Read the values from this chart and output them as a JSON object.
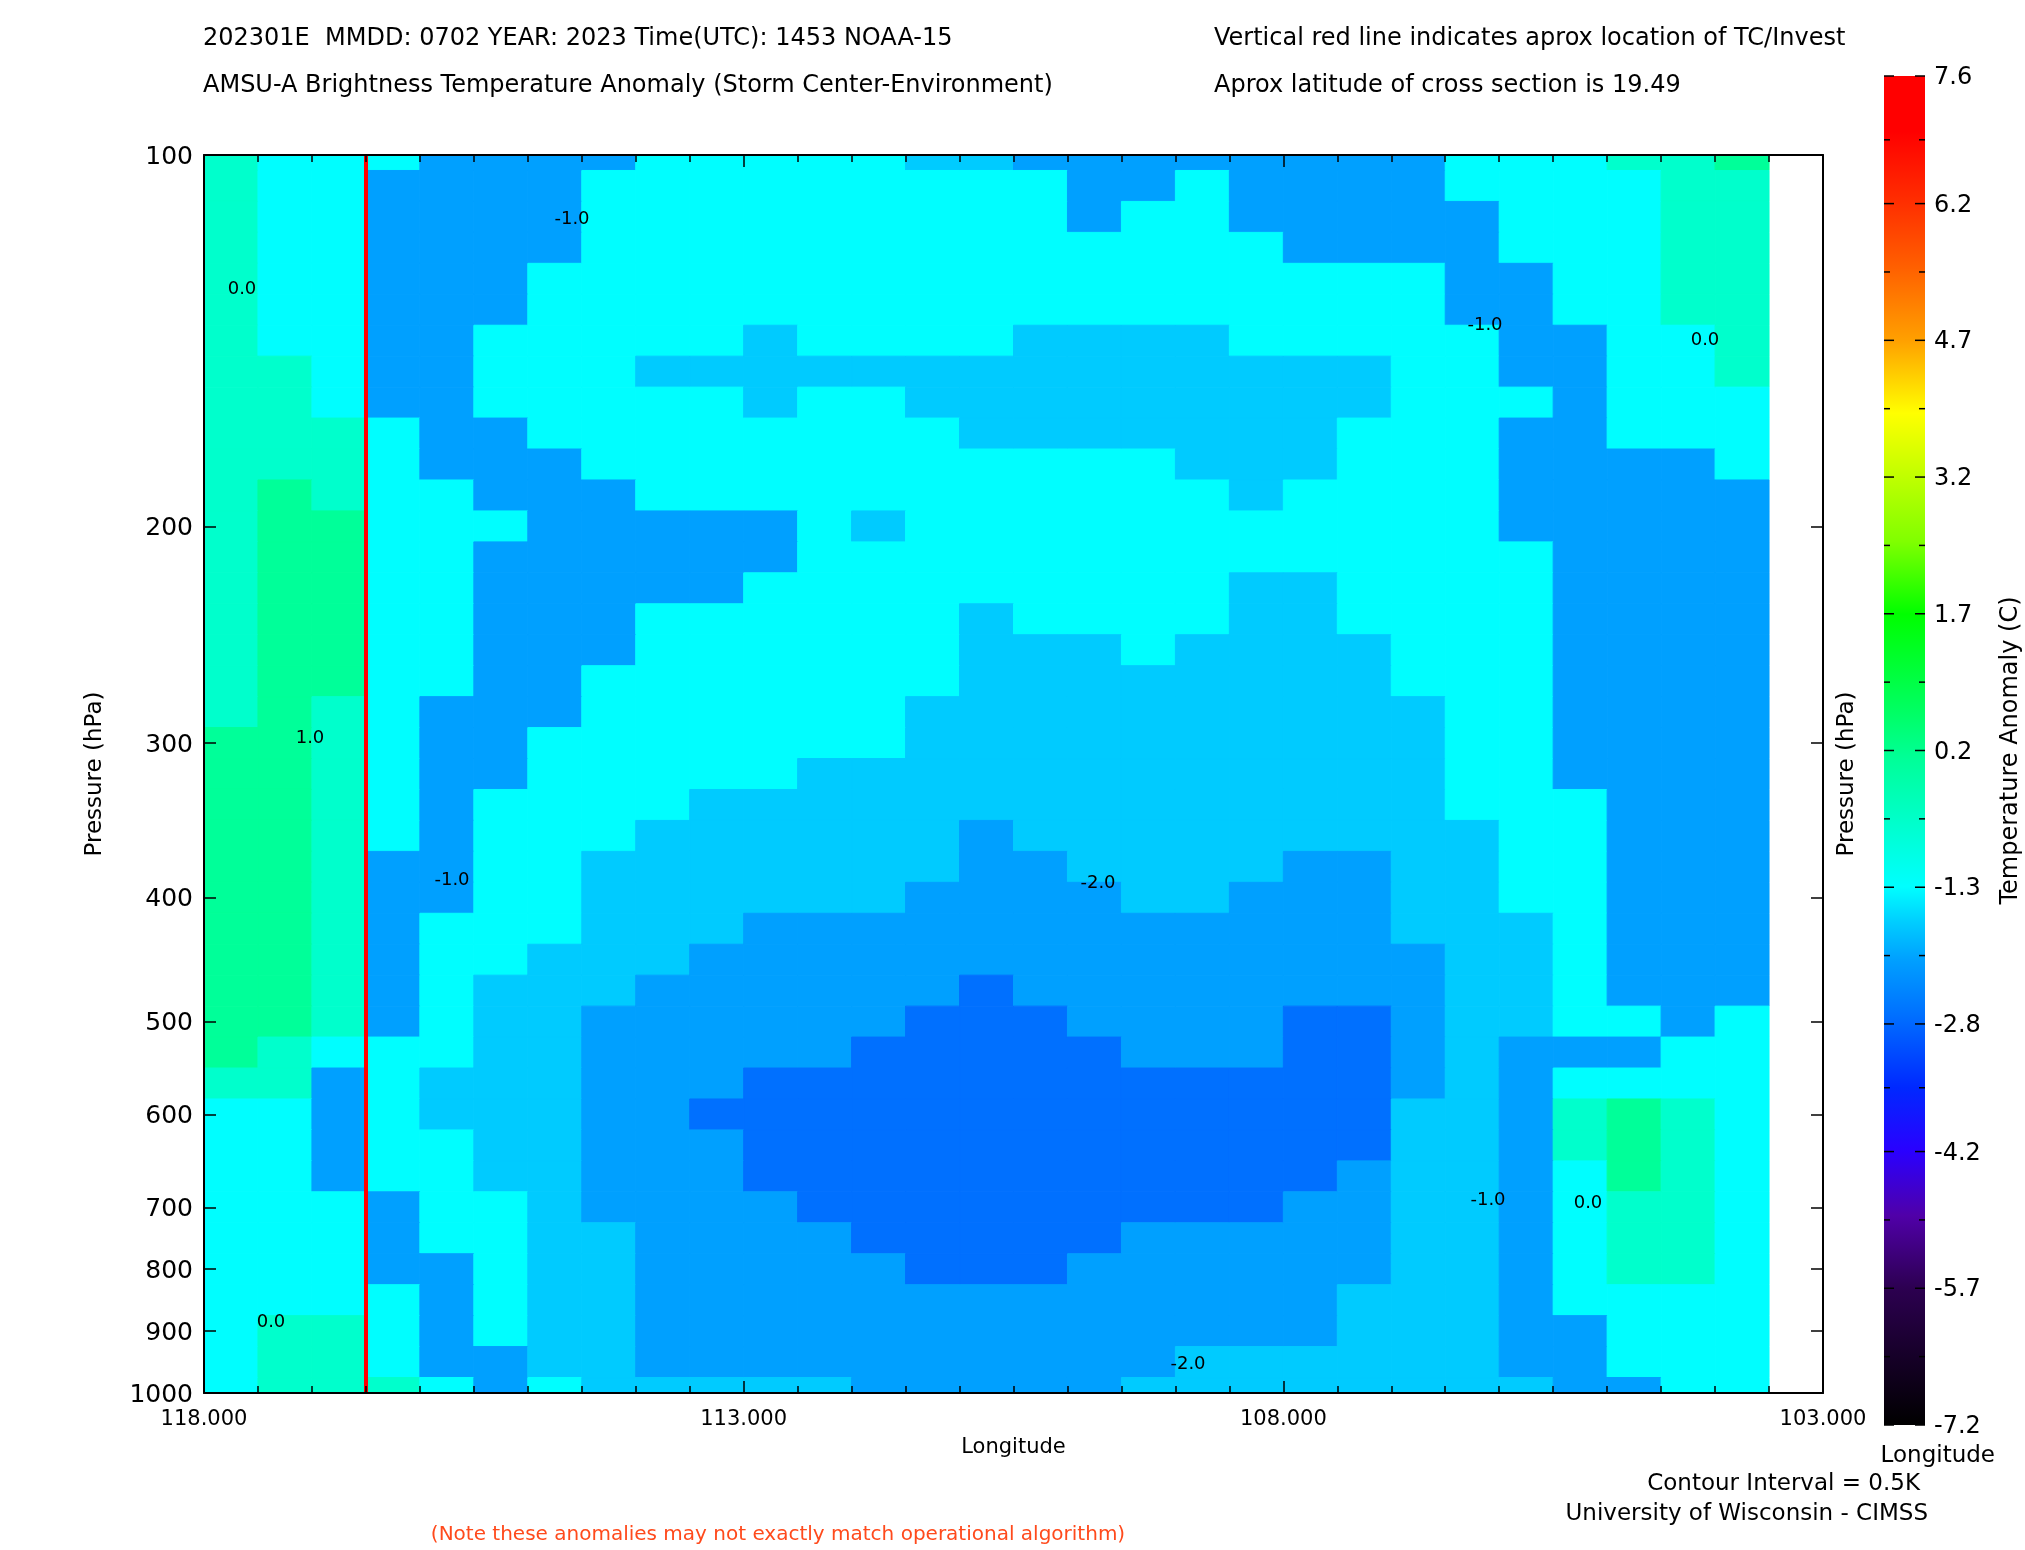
{
  "chart_data": {
    "type": "heatmap",
    "title": "202301E  MMDD: 0702 YEAR: 2023 Time(UTC): 1453 NOAA-15",
    "subtitle": "AMSU-A Brightness Temperature Anomaly (Storm Center-Environment)",
    "xlabel": "Longitude",
    "ylabel": "Pressure (hPa)",
    "y2label": "Pressure (hPa)",
    "clabel": "Temperature Anomaly (C)",
    "annotations": [
      "Vertical red line indicates aprox location of TC/Invest",
      "Aprox latitude of cross section is 19.49",
      "0.0",
      "-1.0",
      "1.0",
      "-1.0",
      "-2.0",
      "-1.0",
      "0.0",
      "-1.0",
      "0.0",
      "0.0",
      "-2.0",
      "Contour Interval = 0.5K",
      "Longitude",
      "University of Wisconsin - CIMSS",
      "(Note these anomalies may not exactly match operational algorithm)"
    ],
    "x": [
      117.75,
      117.25,
      116.75,
      116.25,
      115.75,
      115.25,
      114.75,
      114.25,
      113.75,
      113.25,
      112.75,
      112.25,
      111.75,
      111.25,
      110.75,
      110.25,
      109.75,
      109.25,
      108.75,
      108.25,
      107.75,
      107.25,
      106.75,
      106.25,
      105.75,
      105.25,
      104.75,
      104.25,
      103.75
    ],
    "y_categories": [
      "100",
      null,
      null,
      null,
      null,
      null,
      null,
      null,
      null,
      null,
      null,
      null,
      "200",
      null,
      null,
      null,
      null,
      null,
      null,
      "300",
      null,
      null,
      null,
      null,
      "400",
      null,
      null,
      null,
      "500",
      null,
      null,
      "600",
      null,
      null,
      "700",
      null,
      "800",
      null,
      "900",
      null,
      "1000"
    ],
    "cells": [
      [
        -0.6,
        -1.3,
        -1.3,
        -1.3,
        -2.1,
        -2.1,
        -2.1,
        -2.1,
        -1.3,
        -1.3,
        -1.3,
        -1.3,
        -1.3,
        -1.7,
        -1.7,
        -2.1,
        -2.1,
        -2.1,
        -2.1,
        -2.1,
        -2.1,
        -2.1,
        -2.1,
        -1.3,
        -1.3,
        -1.3,
        -0.6,
        -0.6,
        0.1
      ],
      [
        -0.6,
        -1.3,
        -1.3,
        -2.1,
        -2.1,
        -2.1,
        -2.1,
        -1.3,
        -1.3,
        -1.3,
        -1.3,
        -1.3,
        -1.3,
        -1.3,
        -1.3,
        -1.3,
        -2.1,
        -2.1,
        -1.3,
        -2.1,
        -2.1,
        -2.1,
        -2.1,
        -1.3,
        -1.3,
        -1.3,
        -1.3,
        -0.6,
        -0.6
      ],
      [
        -0.6,
        -1.3,
        -1.3,
        -2.1,
        -2.1,
        -2.1,
        -2.1,
        -1.3,
        -1.3,
        -1.3,
        -1.3,
        -1.3,
        -1.3,
        -1.3,
        -1.3,
        -1.3,
        -2.1,
        -1.3,
        -1.3,
        -2.1,
        -2.1,
        -2.1,
        -2.1,
        -2.1,
        -1.3,
        -1.3,
        -1.3,
        -0.6,
        -0.6
      ],
      [
        -0.6,
        -1.3,
        -1.3,
        -2.1,
        -2.1,
        -2.1,
        -2.1,
        -1.3,
        -1.3,
        -1.3,
        -1.3,
        -1.3,
        -1.3,
        -1.3,
        -1.3,
        -1.3,
        -1.3,
        -1.3,
        -1.3,
        -1.3,
        -2.1,
        -2.1,
        -2.1,
        -2.1,
        -1.3,
        -1.3,
        -1.3,
        -0.6,
        -0.6
      ],
      [
        -0.6,
        -1.3,
        -1.3,
        -2.1,
        -2.1,
        -2.1,
        -1.3,
        -1.3,
        -1.3,
        -1.3,
        -1.3,
        -1.3,
        -1.3,
        -1.3,
        -1.3,
        -1.3,
        -1.3,
        -1.3,
        -1.3,
        -1.3,
        -1.3,
        -1.3,
        -1.3,
        -2.1,
        -2.1,
        -1.3,
        -1.3,
        -0.6,
        -0.6
      ],
      [
        -0.6,
        -1.3,
        -1.3,
        -2.1,
        -2.1,
        -2.1,
        -1.3,
        -1.3,
        -1.3,
        -1.3,
        -1.3,
        -1.3,
        -1.3,
        -1.3,
        -1.3,
        -1.3,
        -1.3,
        -1.3,
        -1.3,
        -1.3,
        -1.3,
        -1.3,
        -1.3,
        -2.1,
        -2.1,
        -1.3,
        -1.3,
        -0.6,
        -0.6
      ],
      [
        -0.6,
        -1.3,
        -1.3,
        -2.1,
        -2.1,
        -1.3,
        -1.3,
        -1.3,
        -1.3,
        -1.3,
        -1.7,
        -1.3,
        -1.3,
        -1.3,
        -1.3,
        -1.7,
        -1.7,
        -1.7,
        -1.7,
        -1.3,
        -1.3,
        -1.3,
        -1.3,
        -1.3,
        -2.1,
        -2.1,
        -1.3,
        -1.3,
        -0.6
      ],
      [
        -0.6,
        -0.6,
        -1.3,
        -2.1,
        -2.1,
        -1.3,
        -1.3,
        -1.3,
        -1.7,
        -1.7,
        -1.7,
        -1.7,
        -1.7,
        -1.7,
        -1.7,
        -1.7,
        -1.7,
        -1.7,
        -1.7,
        -1.7,
        -1.7,
        -1.7,
        -1.3,
        -1.3,
        -2.1,
        -2.1,
        -1.3,
        -1.3,
        -0.6
      ],
      [
        -0.6,
        -0.6,
        -1.3,
        -2.1,
        -2.1,
        -1.3,
        -1.3,
        -1.3,
        -1.3,
        -1.3,
        -1.7,
        -1.3,
        -1.3,
        -1.7,
        -1.7,
        -1.7,
        -1.7,
        -1.7,
        -1.7,
        -1.7,
        -1.7,
        -1.7,
        -1.3,
        -1.3,
        -1.3,
        -2.1,
        -1.3,
        -1.3,
        -1.3
      ],
      [
        -0.6,
        -0.6,
        -0.6,
        -1.3,
        -2.1,
        -2.1,
        -1.3,
        -1.3,
        -1.3,
        -1.3,
        -1.3,
        -1.3,
        -1.3,
        -1.3,
        -1.7,
        -1.7,
        -1.7,
        -1.7,
        -1.7,
        -1.7,
        -1.7,
        -1.3,
        -1.3,
        -1.3,
        -2.1,
        -2.1,
        -1.3,
        -1.3,
        -1.3
      ],
      [
        -0.6,
        -0.6,
        -0.6,
        -1.3,
        -2.1,
        -2.1,
        -2.1,
        -1.3,
        -1.3,
        -1.3,
        -1.3,
        -1.3,
        -1.3,
        -1.3,
        -1.3,
        -1.3,
        -1.3,
        -1.3,
        -1.7,
        -1.7,
        -1.7,
        -1.3,
        -1.3,
        -1.3,
        -2.1,
        -2.1,
        -2.1,
        -2.1,
        -1.3
      ],
      [
        -0.6,
        0.1,
        -0.6,
        -1.3,
        -1.3,
        -2.1,
        -2.1,
        -2.1,
        -1.3,
        -1.3,
        -1.3,
        -1.3,
        -1.3,
        -1.3,
        -1.3,
        -1.3,
        -1.3,
        -1.3,
        -1.3,
        -1.7,
        -1.3,
        -1.3,
        -1.3,
        -1.3,
        -2.1,
        -2.1,
        -2.1,
        -2.1,
        -2.1
      ],
      [
        -0.6,
        0.1,
        0.1,
        -1.3,
        -1.3,
        -1.3,
        -2.1,
        -2.1,
        -2.1,
        -2.1,
        -2.1,
        -1.3,
        -1.7,
        -1.3,
        -1.3,
        -1.3,
        -1.3,
        -1.3,
        -1.3,
        -1.3,
        -1.3,
        -1.3,
        -1.3,
        -1.3,
        -2.1,
        -2.1,
        -2.1,
        -2.1,
        -2.1
      ],
      [
        -0.6,
        0.1,
        0.1,
        -1.3,
        -1.3,
        -2.1,
        -2.1,
        -2.1,
        -2.1,
        -2.1,
        -2.1,
        -1.3,
        -1.3,
        -1.3,
        -1.3,
        -1.3,
        -1.3,
        -1.3,
        -1.3,
        -1.3,
        -1.3,
        -1.3,
        -1.3,
        -1.3,
        -1.3,
        -2.1,
        -2.1,
        -2.1,
        -2.1
      ],
      [
        -0.6,
        0.1,
        0.1,
        -1.3,
        -1.3,
        -2.1,
        -2.1,
        -2.1,
        -2.1,
        -2.1,
        -1.3,
        -1.3,
        -1.3,
        -1.3,
        -1.3,
        -1.3,
        -1.3,
        -1.3,
        -1.3,
        -1.7,
        -1.7,
        -1.3,
        -1.3,
        -1.3,
        -1.3,
        -2.1,
        -2.1,
        -2.1,
        -2.1
      ],
      [
        -0.6,
        0.1,
        0.1,
        -1.3,
        -1.3,
        -2.1,
        -2.1,
        -2.1,
        -1.3,
        -1.3,
        -1.3,
        -1.3,
        -1.3,
        -1.3,
        -1.7,
        -1.3,
        -1.3,
        -1.3,
        -1.3,
        -1.7,
        -1.7,
        -1.3,
        -1.3,
        -1.3,
        -1.3,
        -2.1,
        -2.1,
        -2.1,
        -2.1
      ],
      [
        -0.6,
        0.1,
        0.1,
        -1.3,
        -1.3,
        -2.1,
        -2.1,
        -2.1,
        -1.3,
        -1.3,
        -1.3,
        -1.3,
        -1.3,
        -1.3,
        -1.7,
        -1.7,
        -1.7,
        -1.3,
        -1.7,
        -1.7,
        -1.7,
        -1.7,
        -1.3,
        -1.3,
        -1.3,
        -2.1,
        -2.1,
        -2.1,
        -2.1
      ],
      [
        -0.6,
        0.1,
        0.1,
        -1.3,
        -1.3,
        -2.1,
        -2.1,
        -1.3,
        -1.3,
        -1.3,
        -1.3,
        -1.3,
        -1.3,
        -1.3,
        -1.7,
        -1.7,
        -1.7,
        -1.7,
        -1.7,
        -1.7,
        -1.7,
        -1.7,
        -1.3,
        -1.3,
        -1.3,
        -2.1,
        -2.1,
        -2.1,
        -2.1
      ],
      [
        -0.6,
        0.1,
        -0.6,
        -1.3,
        -2.1,
        -2.1,
        -2.1,
        -1.3,
        -1.3,
        -1.3,
        -1.3,
        -1.3,
        -1.3,
        -1.7,
        -1.7,
        -1.7,
        -1.7,
        -1.7,
        -1.7,
        -1.7,
        -1.7,
        -1.7,
        -1.7,
        -1.3,
        -1.3,
        -2.1,
        -2.1,
        -2.1,
        -2.1
      ],
      [
        0.1,
        0.1,
        -0.6,
        -1.3,
        -2.1,
        -2.1,
        -1.3,
        -1.3,
        -1.3,
        -1.3,
        -1.3,
        -1.3,
        -1.3,
        -1.7,
        -1.7,
        -1.7,
        -1.7,
        -1.7,
        -1.7,
        -1.7,
        -1.7,
        -1.7,
        -1.7,
        -1.3,
        -1.3,
        -2.1,
        -2.1,
        -2.1,
        -2.1
      ],
      [
        0.1,
        0.1,
        -0.6,
        -1.3,
        -2.1,
        -2.1,
        -1.3,
        -1.3,
        -1.3,
        -1.3,
        -1.3,
        -1.7,
        -1.7,
        -1.7,
        -1.7,
        -1.7,
        -1.7,
        -1.7,
        -1.7,
        -1.7,
        -1.7,
        -1.7,
        -1.7,
        -1.3,
        -1.3,
        -2.1,
        -2.1,
        -2.1,
        -2.1
      ],
      [
        0.1,
        0.1,
        -0.6,
        -1.3,
        -2.1,
        -1.3,
        -1.3,
        -1.3,
        -1.3,
        -1.7,
        -1.7,
        -1.7,
        -1.7,
        -1.7,
        -1.7,
        -1.7,
        -1.7,
        -1.7,
        -1.7,
        -1.7,
        -1.7,
        -1.7,
        -1.7,
        -1.3,
        -1.3,
        -1.3,
        -2.1,
        -2.1,
        -2.1
      ],
      [
        0.1,
        0.1,
        -0.6,
        -1.3,
        -2.1,
        -1.3,
        -1.3,
        -1.3,
        -1.7,
        -1.7,
        -1.7,
        -1.7,
        -1.7,
        -1.7,
        -2.1,
        -1.7,
        -1.7,
        -1.7,
        -1.7,
        -1.7,
        -1.7,
        -1.7,
        -1.7,
        -1.7,
        -1.3,
        -1.3,
        -2.1,
        -2.1,
        -2.1
      ],
      [
        0.1,
        0.1,
        -0.6,
        -2.1,
        -2.1,
        -1.3,
        -1.3,
        -1.7,
        -1.7,
        -1.7,
        -1.7,
        -1.7,
        -1.7,
        -1.7,
        -2.1,
        -2.1,
        -1.7,
        -1.7,
        -1.7,
        -1.7,
        -2.1,
        -2.1,
        -1.7,
        -1.7,
        -1.3,
        -1.3,
        -2.1,
        -2.1,
        -2.1
      ],
      [
        0.1,
        0.1,
        -0.6,
        -2.1,
        -2.1,
        -1.3,
        -1.3,
        -1.7,
        -1.7,
        -1.7,
        -1.7,
        -1.7,
        -1.7,
        -2.1,
        -2.1,
        -2.1,
        -2.1,
        -1.7,
        -1.7,
        -2.1,
        -2.1,
        -2.1,
        -1.7,
        -1.7,
        -1.3,
        -1.3,
        -2.1,
        -2.1,
        -2.1
      ],
      [
        0.1,
        0.1,
        -0.6,
        -2.1,
        -1.3,
        -1.3,
        -1.3,
        -1.7,
        -1.7,
        -1.7,
        -2.1,
        -2.1,
        -2.1,
        -2.1,
        -2.1,
        -2.1,
        -2.1,
        -2.1,
        -2.1,
        -2.1,
        -2.1,
        -2.1,
        -1.7,
        -1.7,
        -1.7,
        -1.3,
        -2.1,
        -2.1,
        -2.1
      ],
      [
        0.1,
        0.1,
        -0.6,
        -2.1,
        -1.3,
        -1.3,
        -1.7,
        -1.7,
        -1.7,
        -2.1,
        -2.1,
        -2.1,
        -2.1,
        -2.1,
        -2.1,
        -2.1,
        -2.1,
        -2.1,
        -2.1,
        -2.1,
        -2.1,
        -2.1,
        -2.1,
        -1.7,
        -1.7,
        -1.3,
        -2.1,
        -2.1,
        -2.1
      ],
      [
        0.1,
        0.1,
        -0.6,
        -2.1,
        -1.3,
        -1.7,
        -1.7,
        -1.7,
        -2.1,
        -2.1,
        -2.1,
        -2.1,
        -2.1,
        -2.1,
        -2.7,
        -2.1,
        -2.1,
        -2.1,
        -2.1,
        -2.1,
        -2.1,
        -2.1,
        -2.1,
        -1.7,
        -1.7,
        -1.3,
        -2.1,
        -2.1,
        -2.1
      ],
      [
        0.1,
        0.1,
        -0.6,
        -2.1,
        -1.3,
        -1.7,
        -1.7,
        -2.1,
        -2.1,
        -2.1,
        -2.1,
        -2.1,
        -2.1,
        -2.7,
        -2.7,
        -2.7,
        -2.1,
        -2.1,
        -2.1,
        -2.1,
        -2.7,
        -2.7,
        -2.1,
        -1.7,
        -1.7,
        -1.3,
        -1.3,
        -2.1,
        -1.3
      ],
      [
        0.1,
        -0.6,
        -1.3,
        -1.3,
        -1.3,
        -1.7,
        -1.7,
        -2.1,
        -2.1,
        -2.1,
        -2.1,
        -2.1,
        -2.7,
        -2.7,
        -2.7,
        -2.7,
        -2.7,
        -2.1,
        -2.1,
        -2.1,
        -2.7,
        -2.7,
        -2.1,
        -1.7,
        -2.1,
        -2.1,
        -2.1,
        -1.3,
        -1.3
      ],
      [
        -0.6,
        -0.6,
        -2.1,
        -1.3,
        -1.7,
        -1.7,
        -1.7,
        -2.1,
        -2.1,
        -2.1,
        -2.7,
        -2.7,
        -2.7,
        -2.7,
        -2.7,
        -2.7,
        -2.7,
        -2.7,
        -2.7,
        -2.7,
        -2.7,
        -2.7,
        -2.1,
        -1.7,
        -2.1,
        -1.3,
        -1.3,
        -1.3,
        -1.3
      ],
      [
        -1.3,
        -1.3,
        -2.1,
        -1.3,
        -1.7,
        -1.7,
        -1.7,
        -2.1,
        -2.1,
        -2.7,
        -2.7,
        -2.7,
        -2.7,
        -2.7,
        -2.7,
        -2.7,
        -2.7,
        -2.7,
        -2.7,
        -2.7,
        -2.7,
        -2.7,
        -1.7,
        -1.7,
        -2.1,
        -0.6,
        0.1,
        -0.6,
        -1.3
      ],
      [
        -1.3,
        -1.3,
        -2.1,
        -1.3,
        -1.3,
        -1.7,
        -1.7,
        -2.1,
        -2.1,
        -2.1,
        -2.7,
        -2.7,
        -2.7,
        -2.7,
        -2.7,
        -2.7,
        -2.7,
        -2.7,
        -2.7,
        -2.7,
        -2.7,
        -2.7,
        -1.7,
        -1.7,
        -2.1,
        -0.6,
        0.1,
        -0.6,
        -1.3
      ],
      [
        -1.3,
        -1.3,
        -2.1,
        -1.3,
        -1.3,
        -1.7,
        -1.7,
        -2.1,
        -2.1,
        -2.1,
        -2.7,
        -2.7,
        -2.7,
        -2.7,
        -2.7,
        -2.7,
        -2.7,
        -2.7,
        -2.7,
        -2.7,
        -2.7,
        -2.1,
        -1.7,
        -1.7,
        -2.1,
        -1.3,
        0.1,
        -0.6,
        -1.3
      ],
      [
        -1.3,
        -1.3,
        -1.3,
        -2.1,
        -1.3,
        -1.3,
        -1.7,
        -2.1,
        -2.1,
        -2.1,
        -2.1,
        -2.7,
        -2.7,
        -2.7,
        -2.7,
        -2.7,
        -2.7,
        -2.7,
        -2.7,
        -2.7,
        -2.1,
        -2.1,
        -1.7,
        -1.7,
        -2.1,
        -1.3,
        -0.6,
        -0.6,
        -1.3
      ],
      [
        -1.3,
        -1.3,
        -1.3,
        -2.1,
        -1.3,
        -1.3,
        -1.7,
        -1.7,
        -2.1,
        -2.1,
        -2.1,
        -2.1,
        -2.7,
        -2.7,
        -2.7,
        -2.7,
        -2.7,
        -2.1,
        -2.1,
        -2.1,
        -2.1,
        -2.1,
        -1.7,
        -1.7,
        -2.1,
        -1.3,
        -0.6,
        -0.6,
        -1.3
      ],
      [
        -1.3,
        -1.3,
        -1.3,
        -2.1,
        -2.1,
        -1.3,
        -1.7,
        -1.7,
        -2.1,
        -2.1,
        -2.1,
        -2.1,
        -2.1,
        -2.7,
        -2.7,
        -2.7,
        -2.1,
        -2.1,
        -2.1,
        -2.1,
        -2.1,
        -2.1,
        -1.7,
        -1.7,
        -2.1,
        -1.3,
        -0.6,
        -0.6,
        -1.3
      ],
      [
        -1.3,
        -1.3,
        -1.3,
        -1.3,
        -2.1,
        -1.3,
        -1.7,
        -1.7,
        -2.1,
        -2.1,
        -2.1,
        -2.1,
        -2.1,
        -2.1,
        -2.1,
        -2.1,
        -2.1,
        -2.1,
        -2.1,
        -2.1,
        -2.1,
        -1.7,
        -1.7,
        -1.7,
        -2.1,
        -1.3,
        -1.3,
        -1.3,
        -1.3
      ],
      [
        -1.3,
        -0.6,
        -0.6,
        -1.3,
        -2.1,
        -1.3,
        -1.7,
        -1.7,
        -2.1,
        -2.1,
        -2.1,
        -2.1,
        -2.1,
        -2.1,
        -2.1,
        -2.1,
        -2.1,
        -2.1,
        -2.1,
        -2.1,
        -2.1,
        -1.7,
        -1.7,
        -1.7,
        -2.1,
        -2.1,
        -1.3,
        -1.3,
        -1.3
      ],
      [
        -1.3,
        -0.6,
        -0.6,
        -1.3,
        -2.1,
        -2.1,
        -1.7,
        -1.7,
        -2.1,
        -2.1,
        -2.1,
        -2.1,
        -2.1,
        -2.1,
        -2.1,
        -2.1,
        -2.1,
        -2.1,
        -1.7,
        -1.7,
        -1.7,
        -1.7,
        -1.7,
        -1.7,
        -2.1,
        -2.1,
        -1.3,
        -1.3,
        -1.3
      ],
      [
        -1.3,
        -0.6,
        -0.6,
        -0.6,
        -1.3,
        -2.1,
        -1.3,
        -1.7,
        -1.7,
        -1.7,
        -1.7,
        -1.7,
        -2.1,
        -2.1,
        -2.1,
        -2.1,
        -2.1,
        -1.7,
        -1.7,
        -1.7,
        -1.7,
        -1.7,
        -1.7,
        -1.7,
        -1.7,
        -2.1,
        -2.1,
        -1.3,
        -1.3
      ]
    ],
    "clim": [
      -7.2,
      7.6
    ],
    "cticks": [
      -7.2,
      {
        "value": -6.45,
        "label": null
      },
      -5.7,
      {
        "value": -4.95,
        "label": null
      },
      -4.2,
      {
        "value": -3.5,
        "label": null
      },
      -2.8,
      {
        "value": -2.05,
        "label": null
      },
      -1.3,
      {
        "value": -0.55,
        "label": null
      },
      0.2,
      {
        "value": 0.95,
        "label": null
      },
      1.7,
      {
        "value": 2.45,
        "label": null
      },
      3.2,
      {
        "value": 3.95,
        "label": null
      },
      4.7,
      {
        "value": 5.45,
        "label": null
      },
      6.2,
      {
        "value": 6.9,
        "label": null
      },
      7.6
    ],
    "xlim": [
      118,
      103
    ],
    "xticks": [
      {
        "value": 118,
        "label": "118.000"
      },
      {
        "value": 117.5,
        "label": null
      },
      {
        "value": 117,
        "label": null
      },
      {
        "value": 116.5,
        "label": null
      },
      {
        "value": 116,
        "label": null
      },
      {
        "value": 115.5,
        "label": null
      },
      {
        "value": 115,
        "label": null
      },
      {
        "value": 114.5,
        "label": null
      },
      {
        "value": 114,
        "label": null
      },
      {
        "value": 113.5,
        "label": null
      },
      {
        "value": 113,
        "label": "113.000"
      },
      {
        "value": 112.5,
        "label": null
      },
      {
        "value": 112,
        "label": null
      },
      {
        "value": 111.5,
        "label": null
      },
      {
        "value": 111,
        "label": null
      },
      {
        "value": 110.5,
        "label": null
      },
      {
        "value": 110,
        "label": null
      },
      {
        "value": 109.5,
        "label": null
      },
      {
        "value": 109,
        "label": null
      },
      {
        "value": 108.5,
        "label": null
      },
      {
        "value": 108,
        "label": "108.000"
      },
      {
        "value": 107.5,
        "label": null
      },
      {
        "value": 107,
        "label": null
      },
      {
        "value": 106.5,
        "label": null
      },
      {
        "value": 106,
        "label": null
      },
      {
        "value": 105.5,
        "label": null
      },
      {
        "value": 105,
        "label": null
      },
      {
        "value": 104.5,
        "label": null
      },
      {
        "value": 104,
        "label": null
      },
      {
        "value": 103.5,
        "label": null
      },
      {
        "value": 103,
        "label": "103.000"
      }
    ],
    "ref_lines": [
      {
        "axis": "x",
        "value": 116.5,
        "color": "#ff0000"
      }
    ]
  }
}
